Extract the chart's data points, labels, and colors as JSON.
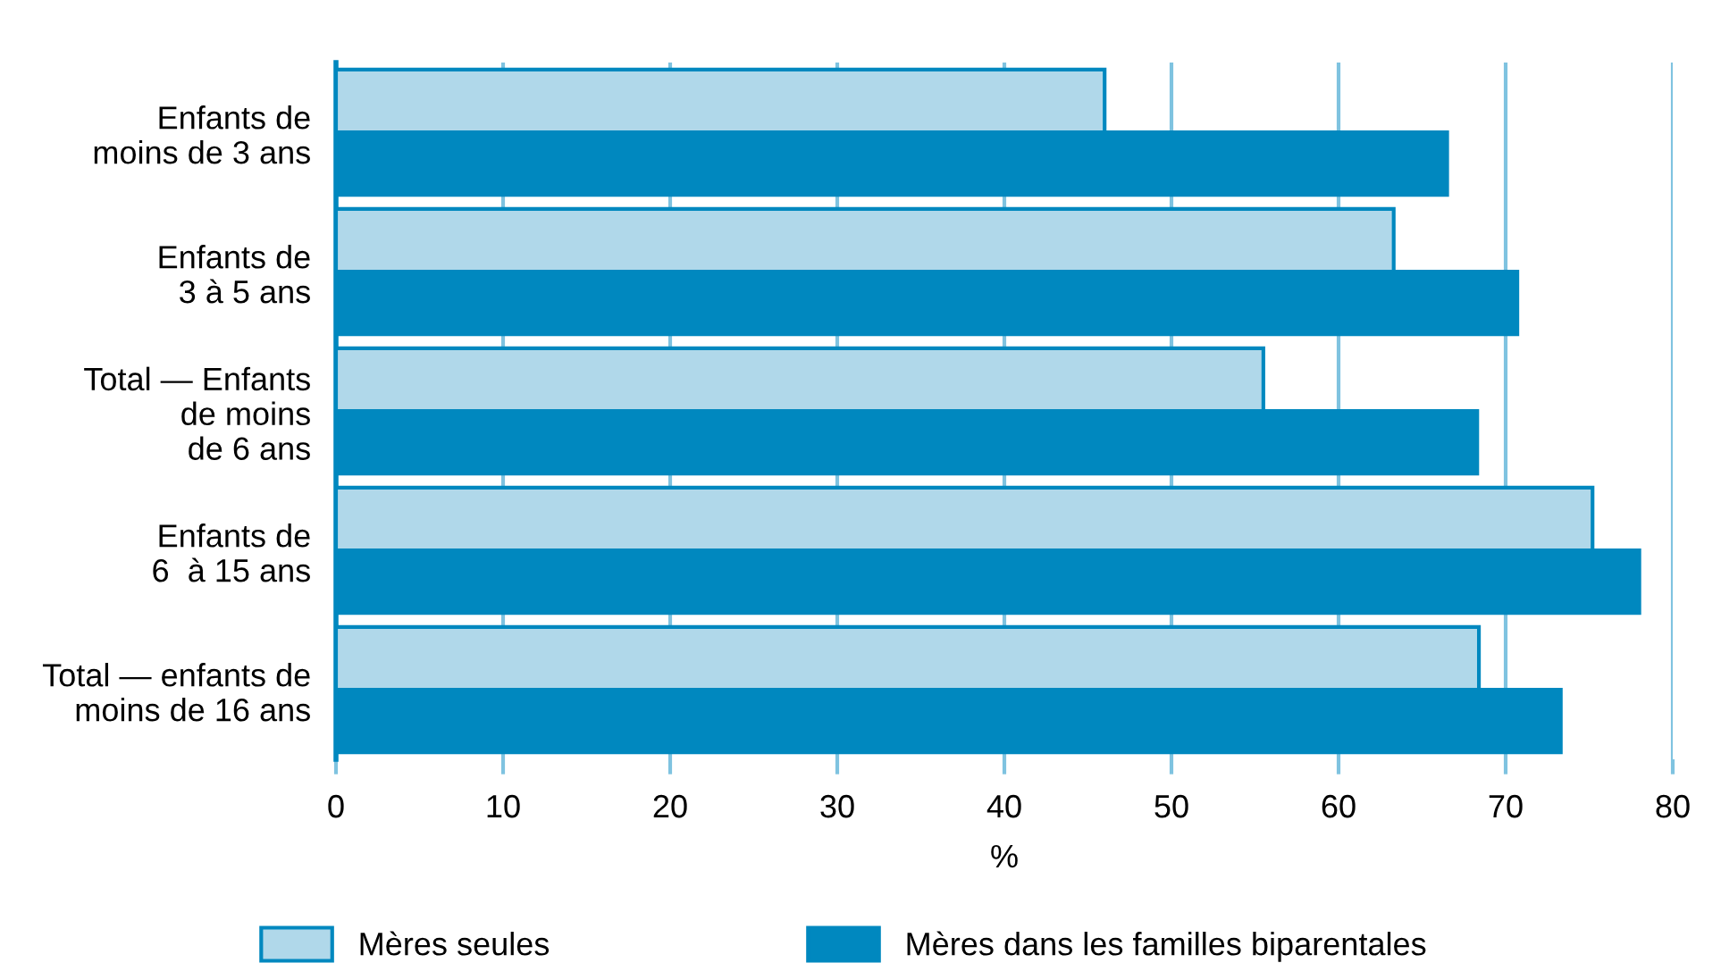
{
  "chart_data": {
    "type": "bar",
    "orientation": "horizontal",
    "xlabel": "%",
    "categories": [
      "Enfants de\nmoins de 3 ans",
      "Enfants de\n3 à 5 ans",
      "Total — Enfants\nde moins\nde 6 ans",
      "Enfants de\n6  à 15 ans",
      "Total — enfants de\nmoins de 16 ans"
    ],
    "series": [
      {
        "name": "Mères seules",
        "color": "#b0d8ea",
        "values": [
          46.0,
          63.3,
          55.5,
          75.2,
          68.4
        ]
      },
      {
        "name": "Mères dans les familles biparentales",
        "color": "#0088bf",
        "values": [
          66.5,
          70.7,
          68.3,
          78.0,
          73.3
        ]
      }
    ],
    "xlim": [
      0,
      80
    ],
    "xticks": [
      0,
      10,
      20,
      30,
      40,
      50,
      60,
      70,
      80
    ],
    "grid": "x",
    "legend": "bottom"
  }
}
